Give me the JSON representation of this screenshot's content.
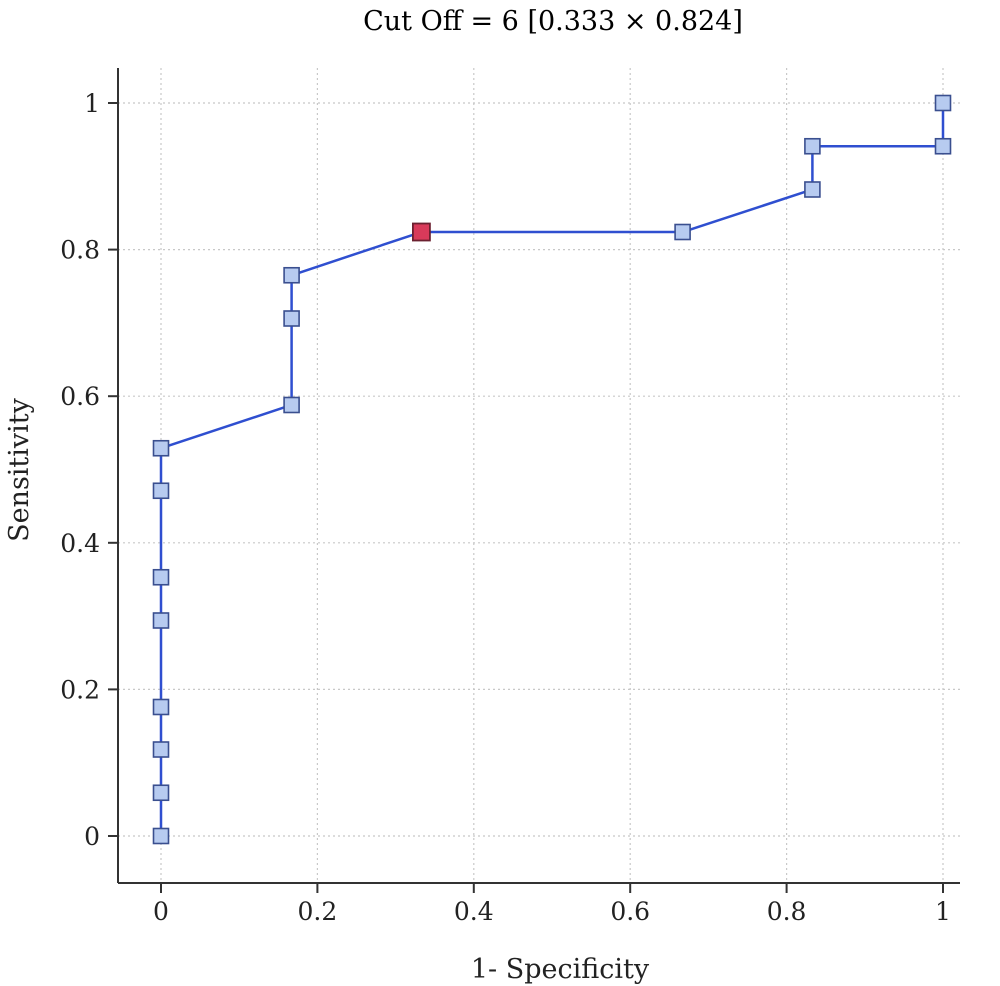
{
  "chart_data": {
    "type": "line",
    "title": "Cut Off = 6 [0.333 × 0.824]",
    "xlabel": "1- Specificity",
    "ylabel": "Sensitivity",
    "xlim": [
      -0.055,
      1.03
    ],
    "ylim": [
      -0.062,
      1.05
    ],
    "xticks": [
      0,
      0.2,
      0.4,
      0.6,
      0.8,
      1
    ],
    "xtick_labels": [
      "0",
      "0.2",
      "0.4",
      "0.6",
      "0.8",
      "1"
    ],
    "yticks": [
      0,
      0.2,
      0.4,
      0.6,
      0.8,
      1
    ],
    "ytick_labels": [
      "0",
      "0.2",
      "0.4",
      "0.6",
      "0.8",
      "1"
    ],
    "grid": true,
    "series": [
      {
        "x": [
          0,
          0,
          0,
          0,
          0,
          0,
          0,
          0,
          0,
          0.167,
          0.167,
          0.167,
          0.333,
          0.667,
          0.833,
          0.833,
          1,
          1
        ],
        "y": [
          0,
          0.059,
          0.118,
          0.176,
          0.294,
          0.353,
          0.471,
          0.529,
          0.529,
          0.588,
          0.706,
          0.765,
          0.824,
          0.824,
          0.882,
          0.941,
          0.941,
          1.0
        ]
      }
    ],
    "markers": [
      [
        0,
        0
      ],
      [
        0,
        0.059
      ],
      [
        0,
        0.118
      ],
      [
        0,
        0.176
      ],
      [
        0,
        0.294
      ],
      [
        0,
        0.353
      ],
      [
        0,
        0.471
      ],
      [
        0,
        0.529
      ],
      [
        0.167,
        0.588
      ],
      [
        0.167,
        0.706
      ],
      [
        0.167,
        0.765
      ],
      [
        0.667,
        0.824
      ],
      [
        0.833,
        0.882
      ],
      [
        0.833,
        0.941
      ],
      [
        1,
        0.941
      ],
      [
        1,
        1.0
      ]
    ],
    "highlight": {
      "x": 0.333,
      "y": 0.824
    },
    "colors": {
      "line": "#2f4fd0",
      "marker_fill": "#b7cbf0",
      "marker_stroke": "#3a4f8f",
      "highlight_fill": "#d83a5a",
      "highlight_stroke": "#6b2030",
      "grid": "#c8c8c8",
      "axis": "#333333"
    }
  }
}
